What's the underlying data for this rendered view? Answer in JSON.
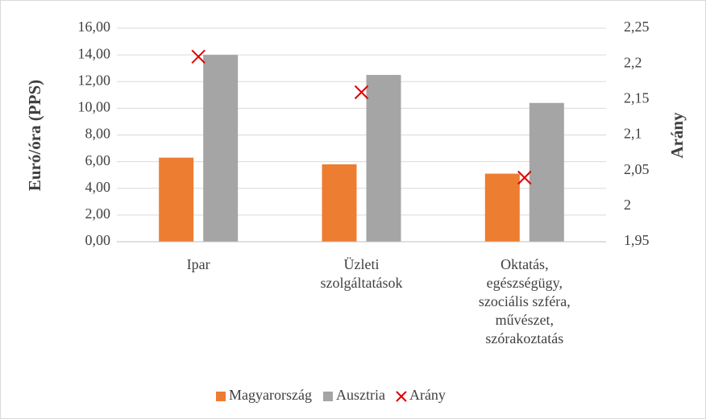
{
  "chart_data": {
    "type": "bar",
    "categories": [
      "Ipar",
      "Üzleti\nszolgáltatások",
      "Oktatás,\negészségügy,\nszociális szféra,\nművészet,\nszórakoztatás"
    ],
    "series": [
      {
        "name": "Magyarország",
        "color": "#ed7d31",
        "values": [
          6.3,
          5.8,
          5.1
        ]
      },
      {
        "name": "Ausztria",
        "color": "#a5a5a5",
        "values": [
          14.0,
          12.5,
          10.4
        ]
      },
      {
        "name": "Arány",
        "color": "#e00000",
        "type": "scatter",
        "axis": "y2",
        "values": [
          2.21,
          2.16,
          2.04
        ]
      }
    ],
    "ylabel": "Euró/óra (PPS)",
    "y2label": "Arány",
    "ylim": [
      0,
      16
    ],
    "yticks": [
      {
        "value": 0,
        "label": "0,00"
      },
      {
        "value": 2,
        "label": "2,00"
      },
      {
        "value": 4,
        "label": "4,00"
      },
      {
        "value": 6,
        "label": "6,00"
      },
      {
        "value": 8,
        "label": "8,00"
      },
      {
        "value": 10,
        "label": "10,00"
      },
      {
        "value": 12,
        "label": "12,00"
      },
      {
        "value": 14,
        "label": "14,00"
      },
      {
        "value": 16,
        "label": "16,00"
      }
    ],
    "y2lim": [
      1.95,
      2.25
    ],
    "y2ticks": [
      {
        "value": 1.95,
        "label": "1,95"
      },
      2,
      {
        "value": 2.05,
        "label": "2,05"
      },
      {
        "value": 2.1,
        "label": "2,1"
      },
      {
        "value": 2.15,
        "label": "2,15"
      },
      {
        "value": 2.2,
        "label": "2,2"
      },
      {
        "value": 2.25,
        "label": "2,25"
      }
    ],
    "grid": true,
    "legend": "bottom"
  }
}
